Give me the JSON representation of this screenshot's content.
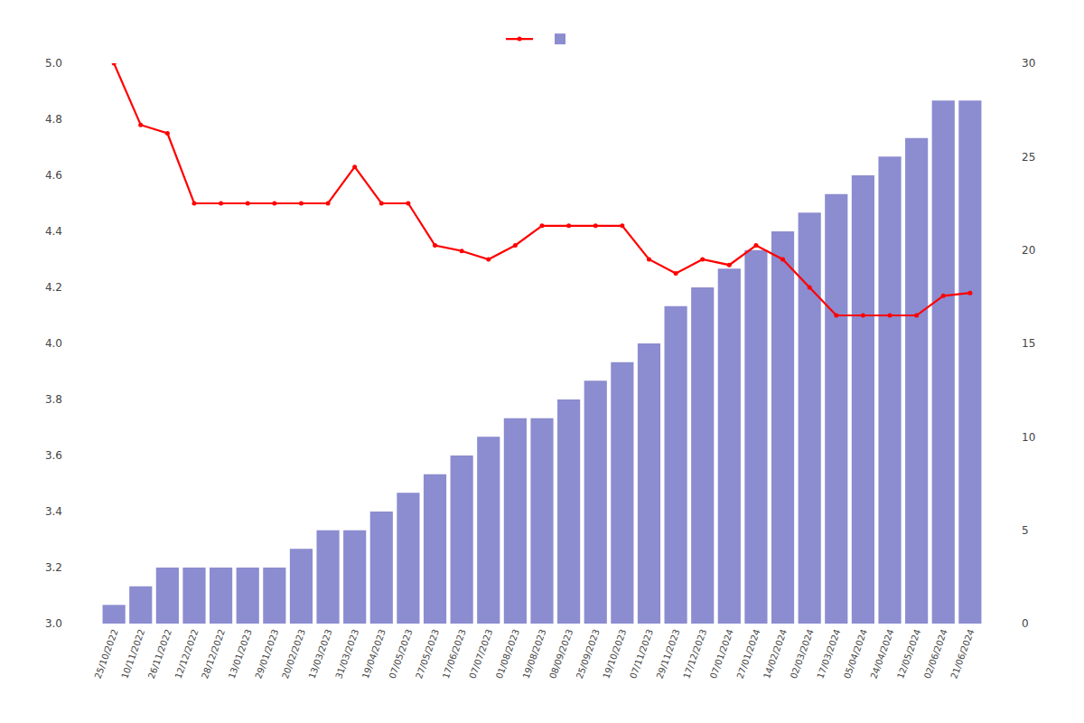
{
  "chart_data": {
    "type": "bar",
    "categories": [
      "25/10/2022",
      "10/11/2022",
      "26/11/2022",
      "12/12/2022",
      "28/12/2022",
      "13/01/2023",
      "29/01/2023",
      "20/02/2023",
      "13/03/2023",
      "31/03/2023",
      "19/04/2023",
      "07/05/2023",
      "27/05/2023",
      "17/06/2023",
      "07/07/2023",
      "01/08/2023",
      "19/08/2023",
      "08/09/2023",
      "25/09/2023",
      "19/10/2023",
      "07/11/2023",
      "29/11/2023",
      "17/12/2023",
      "07/01/2024",
      "27/01/2024",
      "14/02/2024",
      "02/03/2024",
      "17/03/2024",
      "05/04/2024",
      "24/04/2024",
      "12/05/2024",
      "02/06/2024",
      "21/06/2024"
    ],
    "series": [
      {
        "type": "line",
        "color": "#ff0000",
        "marker": "circle",
        "values": [
          5.0,
          4.78,
          4.75,
          4.5,
          4.5,
          4.5,
          4.5,
          4.5,
          4.5,
          4.63,
          4.5,
          4.5,
          4.35,
          4.33,
          4.3,
          4.35,
          4.42,
          4.42,
          4.42,
          4.42,
          4.3,
          4.25,
          4.3,
          4.28,
          4.35,
          4.3,
          4.2,
          4.1,
          4.1,
          4.1,
          4.1,
          4.17,
          4.18
        ]
      },
      {
        "type": "bar",
        "color": "#8080cc",
        "axis": "y2",
        "values": [
          1,
          2,
          3,
          3,
          3,
          3,
          3,
          4,
          5,
          5,
          6,
          7,
          8,
          9,
          10,
          11,
          11,
          12,
          13,
          14,
          15,
          17,
          18,
          19,
          20,
          21,
          22,
          23,
          24,
          25,
          26,
          28,
          28
        ]
      }
    ],
    "ylim": [
      3.0,
      5.0
    ],
    "yticks": [
      {
        "value": 3.0,
        "label": "3.0"
      },
      3.2,
      3.4,
      3.6,
      3.8,
      {
        "value": 4.0,
        "label": "4.0"
      },
      4.2,
      4.4,
      4.6,
      4.8,
      {
        "value": 5.0,
        "label": "5.0"
      }
    ],
    "y2lim": [
      0,
      30
    ],
    "y2ticks": [
      0,
      5,
      10,
      15,
      20,
      25,
      30
    ],
    "grid": false,
    "legend": "top"
  }
}
